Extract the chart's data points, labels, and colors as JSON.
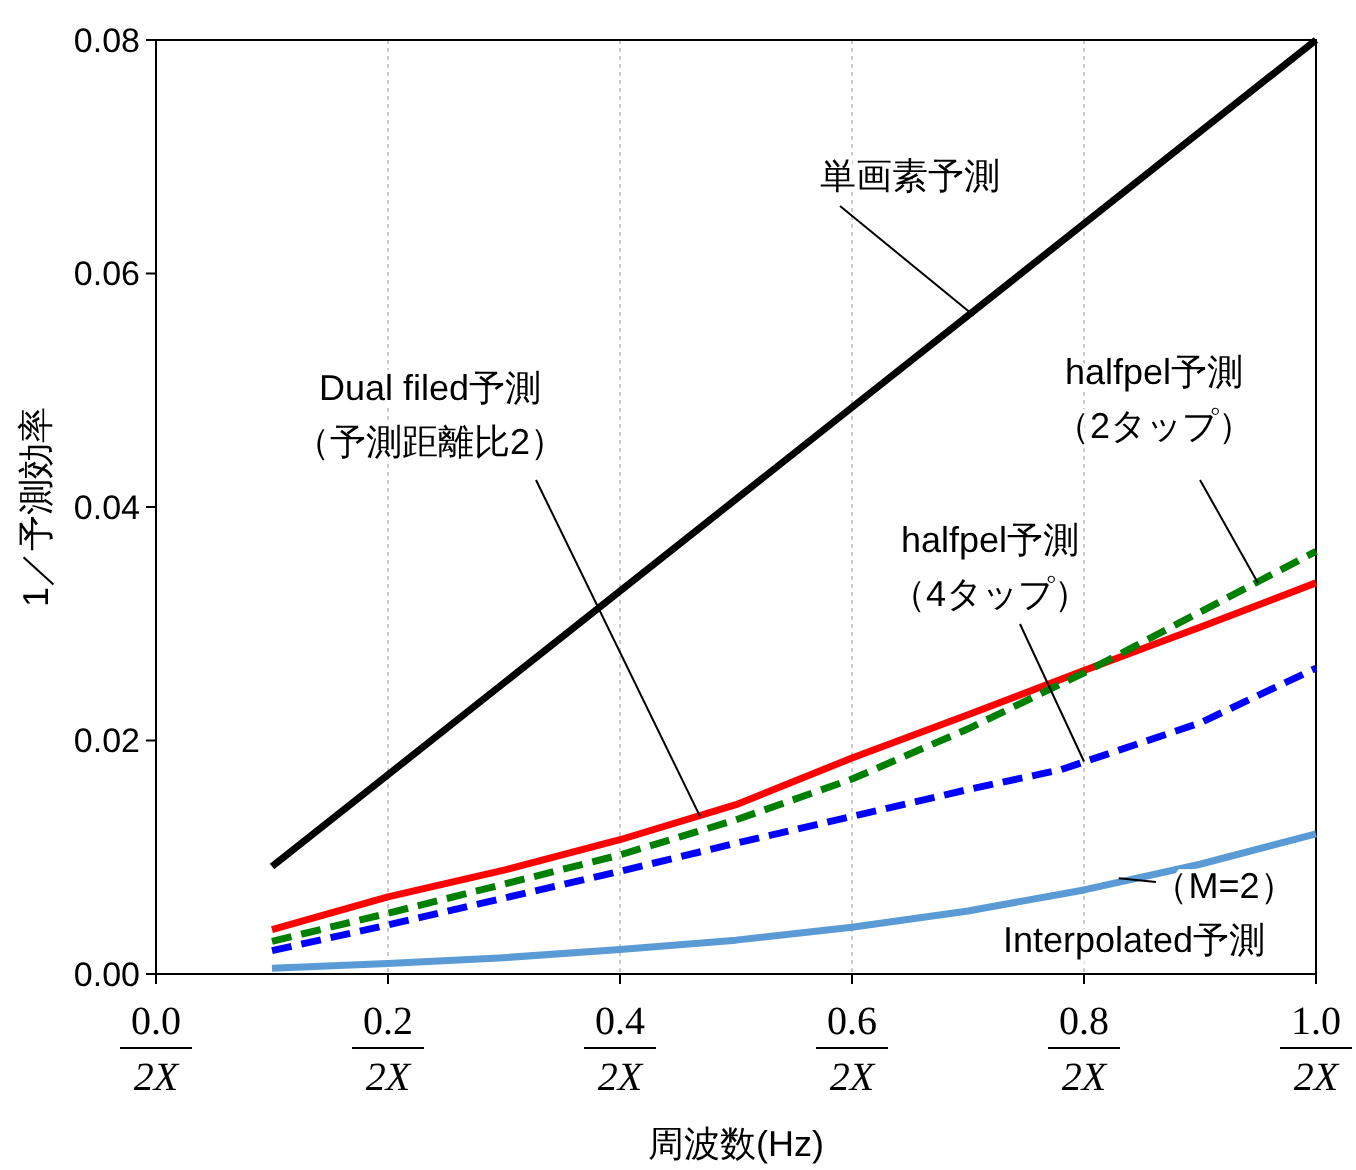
{
  "chart_data": {
    "type": "line",
    "xlabel": "周波数(Hz)",
    "ylabel": "1／予測効率",
    "xlim": [
      0,
      1
    ],
    "ylim": [
      0,
      0.08
    ],
    "xticks": [
      {
        "value": 0,
        "label": "0.0"
      },
      {
        "value": 0.2,
        "label": "0.2"
      },
      {
        "value": 0.4,
        "label": "0.4"
      },
      {
        "value": 0.6,
        "label": "0.6"
      },
      {
        "value": 0.8,
        "label": "0.8"
      },
      {
        "value": 1,
        "label": "1.0"
      }
    ],
    "yticks": [
      {
        "value": 0,
        "label": "0.00"
      },
      {
        "value": 0.02,
        "label": "0.02"
      },
      {
        "value": 0.04,
        "label": "0.04"
      },
      {
        "value": 0.06,
        "label": "0.06"
      },
      {
        "value": 0.08,
        "label": "0.08"
      }
    ],
    "grid": "x",
    "series": [
      {
        "color": "#000000",
        "line_style": "solid",
        "x": [
          0.1,
          1.0
        ],
        "values": [
          0.0092,
          0.08
        ]
      },
      {
        "color": "#ff0000",
        "line_style": "solid",
        "x": [
          0.1,
          0.2,
          0.3,
          0.4,
          0.5,
          0.6,
          0.7,
          0.8,
          0.9,
          1.0
        ],
        "values": [
          0.0038,
          0.0066,
          0.0089,
          0.0115,
          0.0145,
          0.0185,
          0.0222,
          0.026,
          0.0297,
          0.0335
        ]
      },
      {
        "color": "#008000",
        "line_style": "dashed",
        "x": [
          0.1,
          0.2,
          0.3,
          0.4,
          0.5,
          0.6,
          0.7,
          0.8,
          0.9,
          1.0
        ],
        "values": [
          0.0028,
          0.0052,
          0.0077,
          0.0102,
          0.0132,
          0.0167,
          0.021,
          0.0258,
          0.031,
          0.0362
        ]
      },
      {
        "color": "#0000ff",
        "line_style": "dashed",
        "x": [
          0.1,
          0.2,
          0.3,
          0.4,
          0.5,
          0.6,
          0.7,
          0.78,
          0.9,
          1.0
        ],
        "values": [
          0.002,
          0.0042,
          0.0065,
          0.0088,
          0.0112,
          0.0135,
          0.0158,
          0.0175,
          0.0215,
          0.0262
        ]
      },
      {
        "color": "#5b9bd5",
        "line_style": "solid",
        "x": [
          0.1,
          0.2,
          0.3,
          0.4,
          0.5,
          0.6,
          0.7,
          0.8,
          0.9,
          1.0
        ],
        "values": [
          0.0005,
          0.0009,
          0.0014,
          0.0021,
          0.0029,
          0.004,
          0.0054,
          0.0072,
          0.0094,
          0.012
        ]
      }
    ],
    "annotations": [
      {
        "text": "単画素予測",
        "x": 0.705,
        "y": 0.0564
      },
      {
        "text": "Dual filed予測（予測距離比2）",
        "x": 0.469,
        "y": 0.0135
      },
      {
        "text": "halfpel予測（2タップ）",
        "x": 0.95,
        "y": 0.0335
      },
      {
        "text": "halfpel予測（4タップ）",
        "x": 0.8,
        "y": 0.0182
      },
      {
        "text": "（M=2）Interpolated予測",
        "x": 0.83,
        "y": 0.0082
      },
      "2X",
      "2X",
      "2X",
      "2X",
      "2X",
      "2X"
    ]
  }
}
